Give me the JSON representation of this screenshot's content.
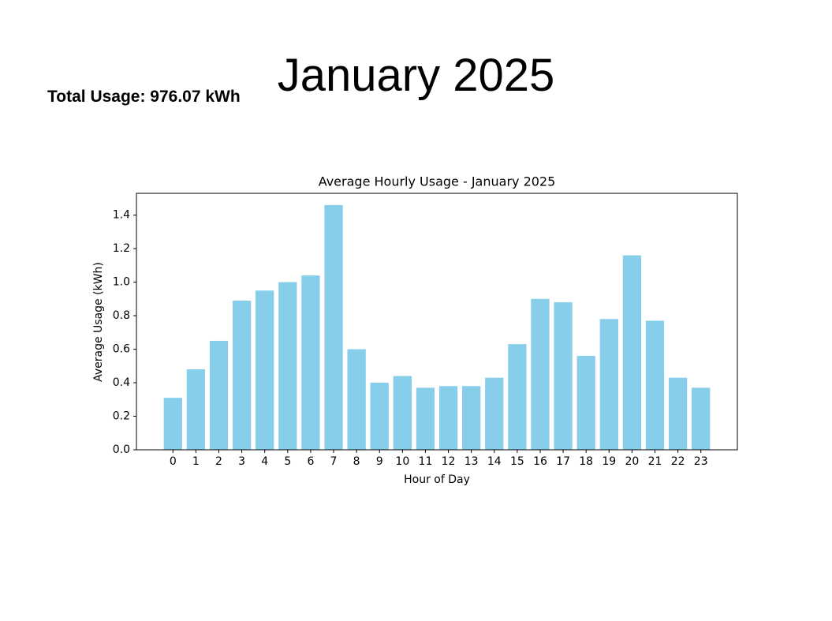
{
  "slide": {
    "title": "January 2025",
    "total_usage": "Total Usage: 976.07 kWh"
  },
  "chart_data": {
    "type": "bar",
    "title": "Average Hourly Usage - January 2025",
    "x_label": "Hour of Day",
    "y_label": "Average Usage (kWh)",
    "x": [
      0,
      1,
      2,
      3,
      4,
      5,
      6,
      7,
      8,
      9,
      10,
      11,
      12,
      13,
      14,
      15,
      16,
      17,
      18,
      19,
      20,
      21,
      22,
      23
    ],
    "values": [
      0.31,
      0.48,
      0.65,
      0.89,
      0.95,
      1.0,
      1.04,
      1.46,
      0.6,
      0.4,
      0.44,
      0.37,
      0.38,
      0.38,
      0.43,
      0.63,
      0.9,
      0.88,
      0.56,
      0.78,
      1.16,
      0.77,
      0.43,
      0.37
    ],
    "color": "#87ceeb",
    "xlim": [
      -1.59,
      24.59
    ],
    "xticks": [
      0,
      1,
      2,
      3,
      4,
      5,
      6,
      7,
      8,
      9,
      10,
      11,
      12,
      13,
      14,
      15,
      16,
      17,
      18,
      19,
      20,
      21,
      22,
      23
    ],
    "ylim": [
      0,
      1.53
    ],
    "yticks": [
      {
        "value": 0,
        "label": "0.0"
      },
      0.2,
      0.4,
      0.6,
      0.8,
      {
        "value": 1,
        "label": "1.0"
      },
      1.2,
      1.4
    ],
    "grid": false
  }
}
